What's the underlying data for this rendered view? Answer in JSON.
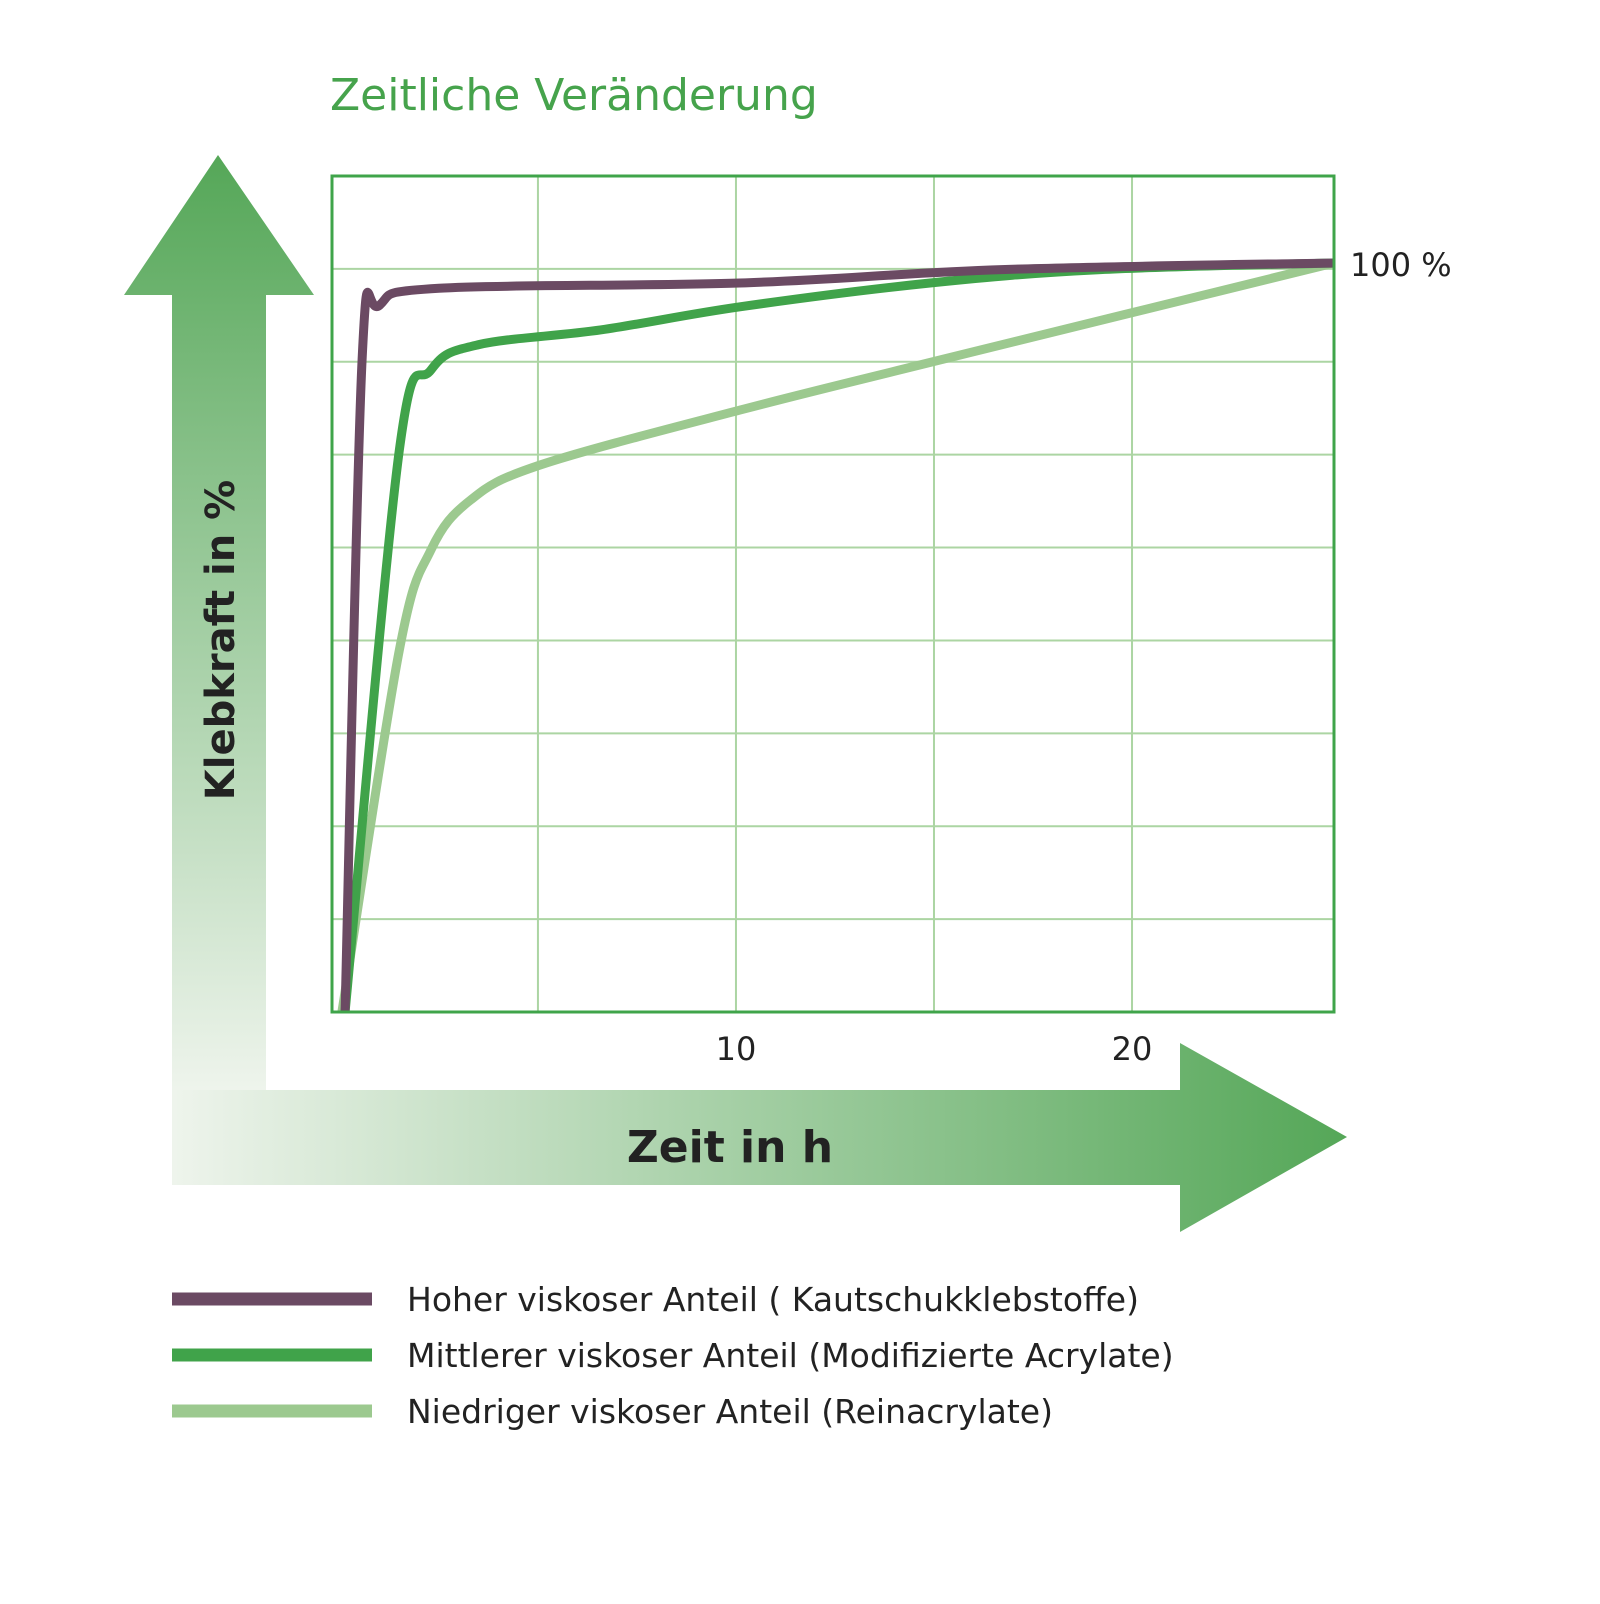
{
  "chart_data": {
    "type": "line",
    "title": "Zeitliche Veränderung",
    "xlabel": "Zeit in h",
    "ylabel": "Klebkraft in %",
    "xlim": [
      -0.2,
      25.1
    ],
    "ylim": [
      0,
      112.5
    ],
    "x_ticks": [
      {
        "value": 10,
        "label": "10"
      },
      {
        "value": 20,
        "label": "20"
      }
    ],
    "x_gridlines": [
      5,
      10,
      15,
      20
    ],
    "y_gridlines": [
      12.5,
      25,
      37.5,
      50,
      62.5,
      75,
      87.5,
      100
    ],
    "y_annotation": {
      "value": 100,
      "label": "100 %"
    },
    "grid": true,
    "legend_placement": "bottom",
    "colors": {
      "title": "#46a34c",
      "frame": "#3fa44a",
      "grid": "#acd5a3",
      "arrow_dark": "#55a758",
      "arrow_light": "#eef4ec",
      "text": "#222222"
    },
    "series": [
      {
        "name": "Hoher viskoser Anteil ( Kautschukklebstoffe)",
        "color": "#6b4a63",
        "x": [
          0.13,
          0.56,
          1.0,
          2.5,
          10.1,
          16.7,
          25.1
        ],
        "y": [
          0,
          87.8,
          95.1,
          97.4,
          98.1,
          99.9,
          100.8
        ]
      },
      {
        "name": "Mittlerer viskoser Anteil (Modifizierte Acrylate)",
        "color": "#40a34a",
        "x": [
          0.13,
          1.5,
          2.3,
          3.5,
          6.6,
          10.1,
          14.9,
          19.2,
          25.1
        ],
        "y": [
          0,
          75.6,
          86.4,
          89.8,
          91.8,
          94.9,
          98.1,
          99.9,
          100.8
        ]
      },
      {
        "name": "Niedriger viskoser Anteil (Reinacrylate)",
        "color": "#9cc98f",
        "x": [
          0.05,
          1.5,
          2.3,
          3.3,
          5.05,
          10.1,
          15.2,
          25.1
        ],
        "y": [
          0,
          48.7,
          62.2,
          68.9,
          73.6,
          81.0,
          87.8,
          100.8
        ]
      }
    ]
  }
}
